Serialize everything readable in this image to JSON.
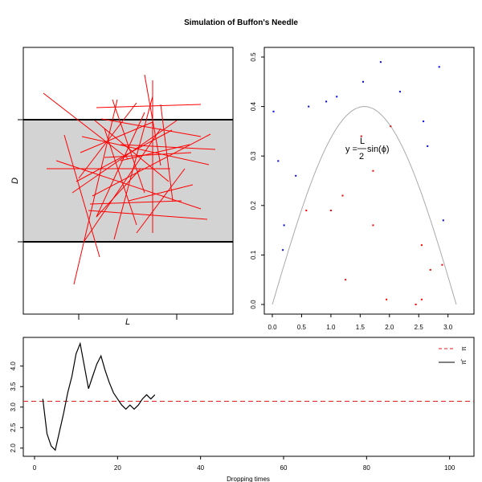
{
  "title": "Simulation of Buffon's Needle",
  "chart_data": [
    {
      "id": "needles",
      "type": "scatter",
      "xlabel": "L",
      "ylabel": "D",
      "band_fill": "#d3d3d3",
      "needle_color": "#ff0000",
      "needles": [
        [
          54,
          116,
          160,
          198
        ],
        [
          92,
          354,
          146,
          124
        ],
        [
          180,
          93,
          200,
          206
        ],
        [
          58,
          210,
          212,
          210
        ],
        [
          120,
          134,
          250,
          130
        ],
        [
          118,
          150,
          210,
          226
        ],
        [
          102,
          170,
          260,
          205
        ],
        [
          110,
          262,
          258,
          273
        ],
        [
          100,
          190,
          190,
          152
        ],
        [
          150,
          180,
          268,
          186
        ],
        [
          130,
          196,
          238,
          190
        ],
        [
          80,
          168,
          124,
          320
        ],
        [
          112,
          254,
          226,
          250
        ],
        [
          142,
          298,
          190,
          120
        ],
        [
          126,
          148,
          250,
          170
        ],
        [
          190,
          100,
          190,
          290
        ],
        [
          170,
          290,
          230,
          210
        ],
        [
          98,
          222,
          170,
          128
        ],
        [
          140,
          124,
          180,
          240
        ],
        [
          160,
          250,
          240,
          230
        ],
        [
          105,
          300,
          200,
          160
        ],
        [
          90,
          240,
          220,
          150
        ],
        [
          120,
          270,
          180,
          140
        ],
        [
          200,
          130,
          215,
          250
        ],
        [
          150,
          200,
          236,
          180
        ],
        [
          70,
          200,
          250,
          260
        ],
        [
          130,
          160,
          170,
          280
        ],
        [
          115,
          244,
          262,
          167
        ],
        [
          95,
          226,
          214,
          162
        ],
        [
          120,
          270,
          175,
          210
        ]
      ]
    },
    {
      "id": "sine-scatter",
      "type": "scatter",
      "xlim": [
        0,
        3.1416
      ],
      "ylim": [
        0,
        0.5
      ],
      "x_ticks": [
        "0.0",
        "0.5",
        "1.0",
        "1.5",
        "2.0",
        "2.5",
        "3.0"
      ],
      "y_ticks": [
        "0.0",
        "0.1",
        "0.2",
        "0.3",
        "0.4",
        "0.5"
      ],
      "curve_label_prefix": "y = ",
      "curve_label_num": "L",
      "curve_label_den": "2",
      "curve_label_suffix": "sin(ϕ)",
      "curve_color": "#aaaaaa",
      "below_color": "#ff0000",
      "above_color": "#0000ff",
      "points": [
        [
          0.02,
          0.39
        ],
        [
          0.1,
          0.29
        ],
        [
          0.2,
          0.16
        ],
        [
          0.18,
          0.11
        ],
        [
          0.4,
          0.26
        ],
        [
          0.62,
          0.4
        ],
        [
          0.92,
          0.41
        ],
        [
          1.1,
          0.42
        ],
        [
          1.55,
          0.45
        ],
        [
          1.85,
          0.49
        ],
        [
          2.18,
          0.43
        ],
        [
          2.58,
          0.37
        ],
        [
          2.65,
          0.32
        ],
        [
          2.85,
          0.48
        ],
        [
          2.92,
          0.17
        ],
        [
          0.58,
          0.19
        ],
        [
          1.0,
          0.19
        ],
        [
          1.2,
          0.22
        ],
        [
          1.25,
          0.05
        ],
        [
          1.52,
          0.34
        ],
        [
          1.72,
          0.27
        ],
        [
          1.72,
          0.16
        ],
        [
          1.95,
          0.01
        ],
        [
          2.02,
          0.36
        ],
        [
          2.45,
          0.0
        ],
        [
          2.55,
          0.01
        ],
        [
          2.55,
          0.12
        ],
        [
          2.7,
          0.07
        ],
        [
          2.9,
          0.08
        ]
      ]
    },
    {
      "id": "pi-estimate",
      "type": "line",
      "xlabel": "Dropping times",
      "xlim": [
        0,
        102
      ],
      "ylim": [
        1.8,
        4.7
      ],
      "x_ticks": [
        "0",
        "20",
        "40",
        "60",
        "80",
        "100"
      ],
      "y_ticks": [
        "2.0",
        "2.5",
        "3.0",
        "3.5",
        "4.0"
      ],
      "reference_value": 3.1416,
      "reference_color": "#e31a1c",
      "legend_position": "top-right",
      "legend_pi": "π",
      "legend_pi_hat": "π̂",
      "x": [
        2,
        3,
        4,
        5,
        6,
        7,
        8,
        9,
        10,
        11,
        12,
        13,
        14,
        15,
        16,
        17,
        18,
        19,
        20,
        21,
        22,
        23,
        24,
        25,
        26,
        27,
        28,
        29
      ],
      "y": [
        3.2,
        2.35,
        2.05,
        1.95,
        2.4,
        2.85,
        3.35,
        3.75,
        4.3,
        4.55,
        4.0,
        3.45,
        3.75,
        4.05,
        4.25,
        3.9,
        3.6,
        3.35,
        3.2,
        3.05,
        2.95,
        3.05,
        2.95,
        3.05,
        3.2,
        3.3,
        3.2,
        3.3
      ]
    }
  ]
}
